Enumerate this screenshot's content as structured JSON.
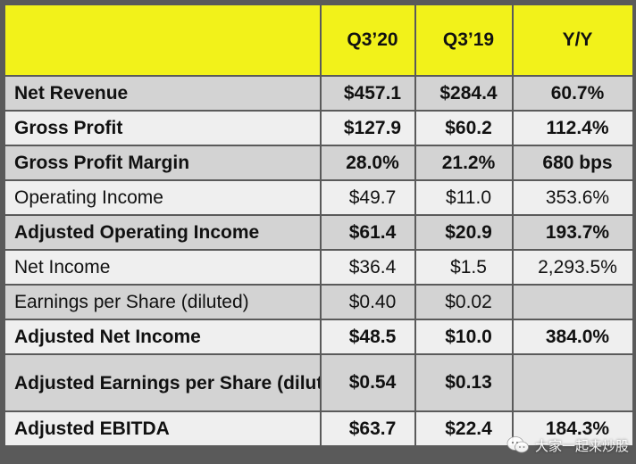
{
  "table": {
    "headers": [
      "",
      "Q3’20",
      "Q3’19",
      "Y/Y"
    ],
    "rows": [
      {
        "label": "Net Revenue",
        "q3_20": "$457.1",
        "q3_19": "$284.4",
        "yy": "60.7%",
        "bold": true,
        "shade": "dark"
      },
      {
        "label": "Gross Profit",
        "q3_20": "$127.9",
        "q3_19": "$60.2",
        "yy": "112.4%",
        "bold": true,
        "shade": "light"
      },
      {
        "label": "Gross Profit Margin",
        "q3_20": "28.0%",
        "q3_19": "21.2%",
        "yy": "680 bps",
        "bold": true,
        "shade": "dark"
      },
      {
        "label": "Operating Income",
        "q3_20": "$49.7",
        "q3_19": "$11.0",
        "yy": "353.6%",
        "bold": false,
        "shade": "light"
      },
      {
        "label": "Adjusted Operating Income",
        "q3_20": "$61.4",
        "q3_19": "$20.9",
        "yy": "193.7%",
        "bold": true,
        "shade": "dark"
      },
      {
        "label": "Net Income",
        "q3_20": "$36.4",
        "q3_19": "$1.5",
        "yy": "2,293.5%",
        "bold": false,
        "shade": "light"
      },
      {
        "label": "Earnings per Share (diluted)",
        "q3_20": "$0.40",
        "q3_19": "$0.02",
        "yy": "",
        "bold": false,
        "shade": "dark"
      },
      {
        "label": "Adjusted Net Income",
        "q3_20": "$48.5",
        "q3_19": "$10.0",
        "yy": "384.0%",
        "bold": true,
        "shade": "light"
      },
      {
        "label": "Adjusted Earnings per Share (diluted)",
        "q3_20": "$0.54",
        "q3_19": "$0.13",
        "yy": "",
        "bold": true,
        "shade": "dark"
      },
      {
        "label": "Adjusted EBITDA",
        "q3_20": "$63.7",
        "q3_19": "$22.4",
        "yy": "184.3%",
        "bold": true,
        "shade": "light"
      }
    ]
  },
  "watermark": {
    "text": "大家一起来炒股",
    "icon": "chat-bubbles-icon"
  },
  "colors": {
    "header_bg": "#f2f21a",
    "row_dark": "#d3d3d3",
    "row_light": "#efefef",
    "grid": "#5a5a5a"
  }
}
